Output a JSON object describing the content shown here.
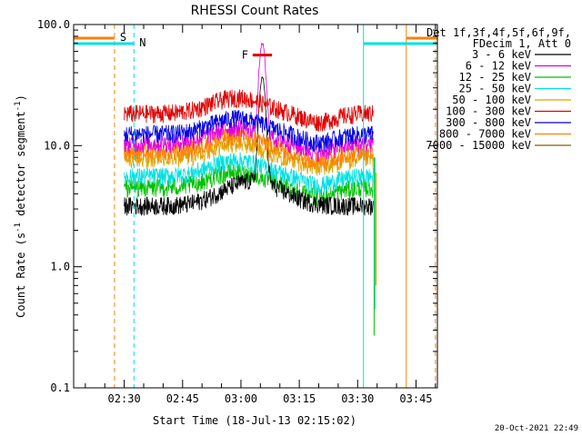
{
  "chart_data": {
    "type": "line",
    "title": "RHESSI Count Rates",
    "xlabel": "Start Time (18-Jul-13 02:15:02)",
    "ylabel_main": "Count Rate (s",
    "ylabel_sup1": "-1",
    "ylabel_mid": " detector segment",
    "ylabel_sup2": "-1",
    "ylabel_end": ")",
    "yscale": "log",
    "ylim": [
      0.1,
      100.0
    ],
    "xlim_minutes": [
      2.0,
      95.5
    ],
    "x_ticks": [
      "02:30",
      "02:45",
      "03:00",
      "03:15",
      "03:30",
      "03:45"
    ],
    "x_tick_minutes": [
      15,
      30,
      45,
      60,
      75,
      90
    ],
    "y_ticks": [
      "0.1",
      "1.0",
      "10.0",
      "100.0"
    ],
    "y_tick_values": [
      0.1,
      1.0,
      10.0,
      100.0
    ],
    "legend_header": [
      "Det 1f,3f,4f,5f,6f,9f,",
      "FDecim 1, Att 0"
    ],
    "series": [
      {
        "name": "3 - 6 keV",
        "color": "#000000",
        "level": 3.2,
        "peak": 35
      },
      {
        "name": "6 - 12 keV",
        "color": "#e000e0",
        "level": 10.5,
        "peak": 68
      },
      {
        "name": "12 - 25 keV",
        "color": "#00c000",
        "level": 4.5,
        "peak": 0
      },
      {
        "name": "25 - 50 keV",
        "color": "#00e0e0",
        "level": 5.6,
        "peak": 0
      },
      {
        "name": "50 - 100 keV",
        "color": "#e0a000",
        "level": 7.8,
        "peak": 0
      },
      {
        "name": "100 - 300 keV",
        "color": "#e00000",
        "level": 18.5,
        "peak": 0
      },
      {
        "name": "300 - 800 keV",
        "color": "#0000e0",
        "level": 12.5,
        "peak": 0
      },
      {
        "name": "800 - 7000 keV",
        "color": "#ff8000",
        "level": 9.0,
        "peak": 0
      },
      {
        "name": "7000 - 15000 keV",
        "color": "#806000",
        "level": 0,
        "peak": 0
      }
    ],
    "data_start_minute": 15.0,
    "data_end_minute": 79.0,
    "flare_peak_minute": 50.5,
    "annotations": [
      {
        "text": "S",
        "color": "#ff8000"
      },
      {
        "text": "N",
        "color": "#00e0e0"
      },
      {
        "text": "F",
        "color": "#e00000"
      }
    ],
    "saa_intervals_minutes": [
      [
        2.0,
        12.5
      ],
      [
        87.5,
        95.5
      ]
    ],
    "night_intervals_minutes": [
      [
        2.0,
        17.5
      ],
      [
        76.5,
        95.5
      ]
    ],
    "flare_bar_minutes": [
      48.0,
      53.0
    ],
    "flare_bar_value": 56.0
  },
  "footer_date": "20-Oct-2021 22:49"
}
